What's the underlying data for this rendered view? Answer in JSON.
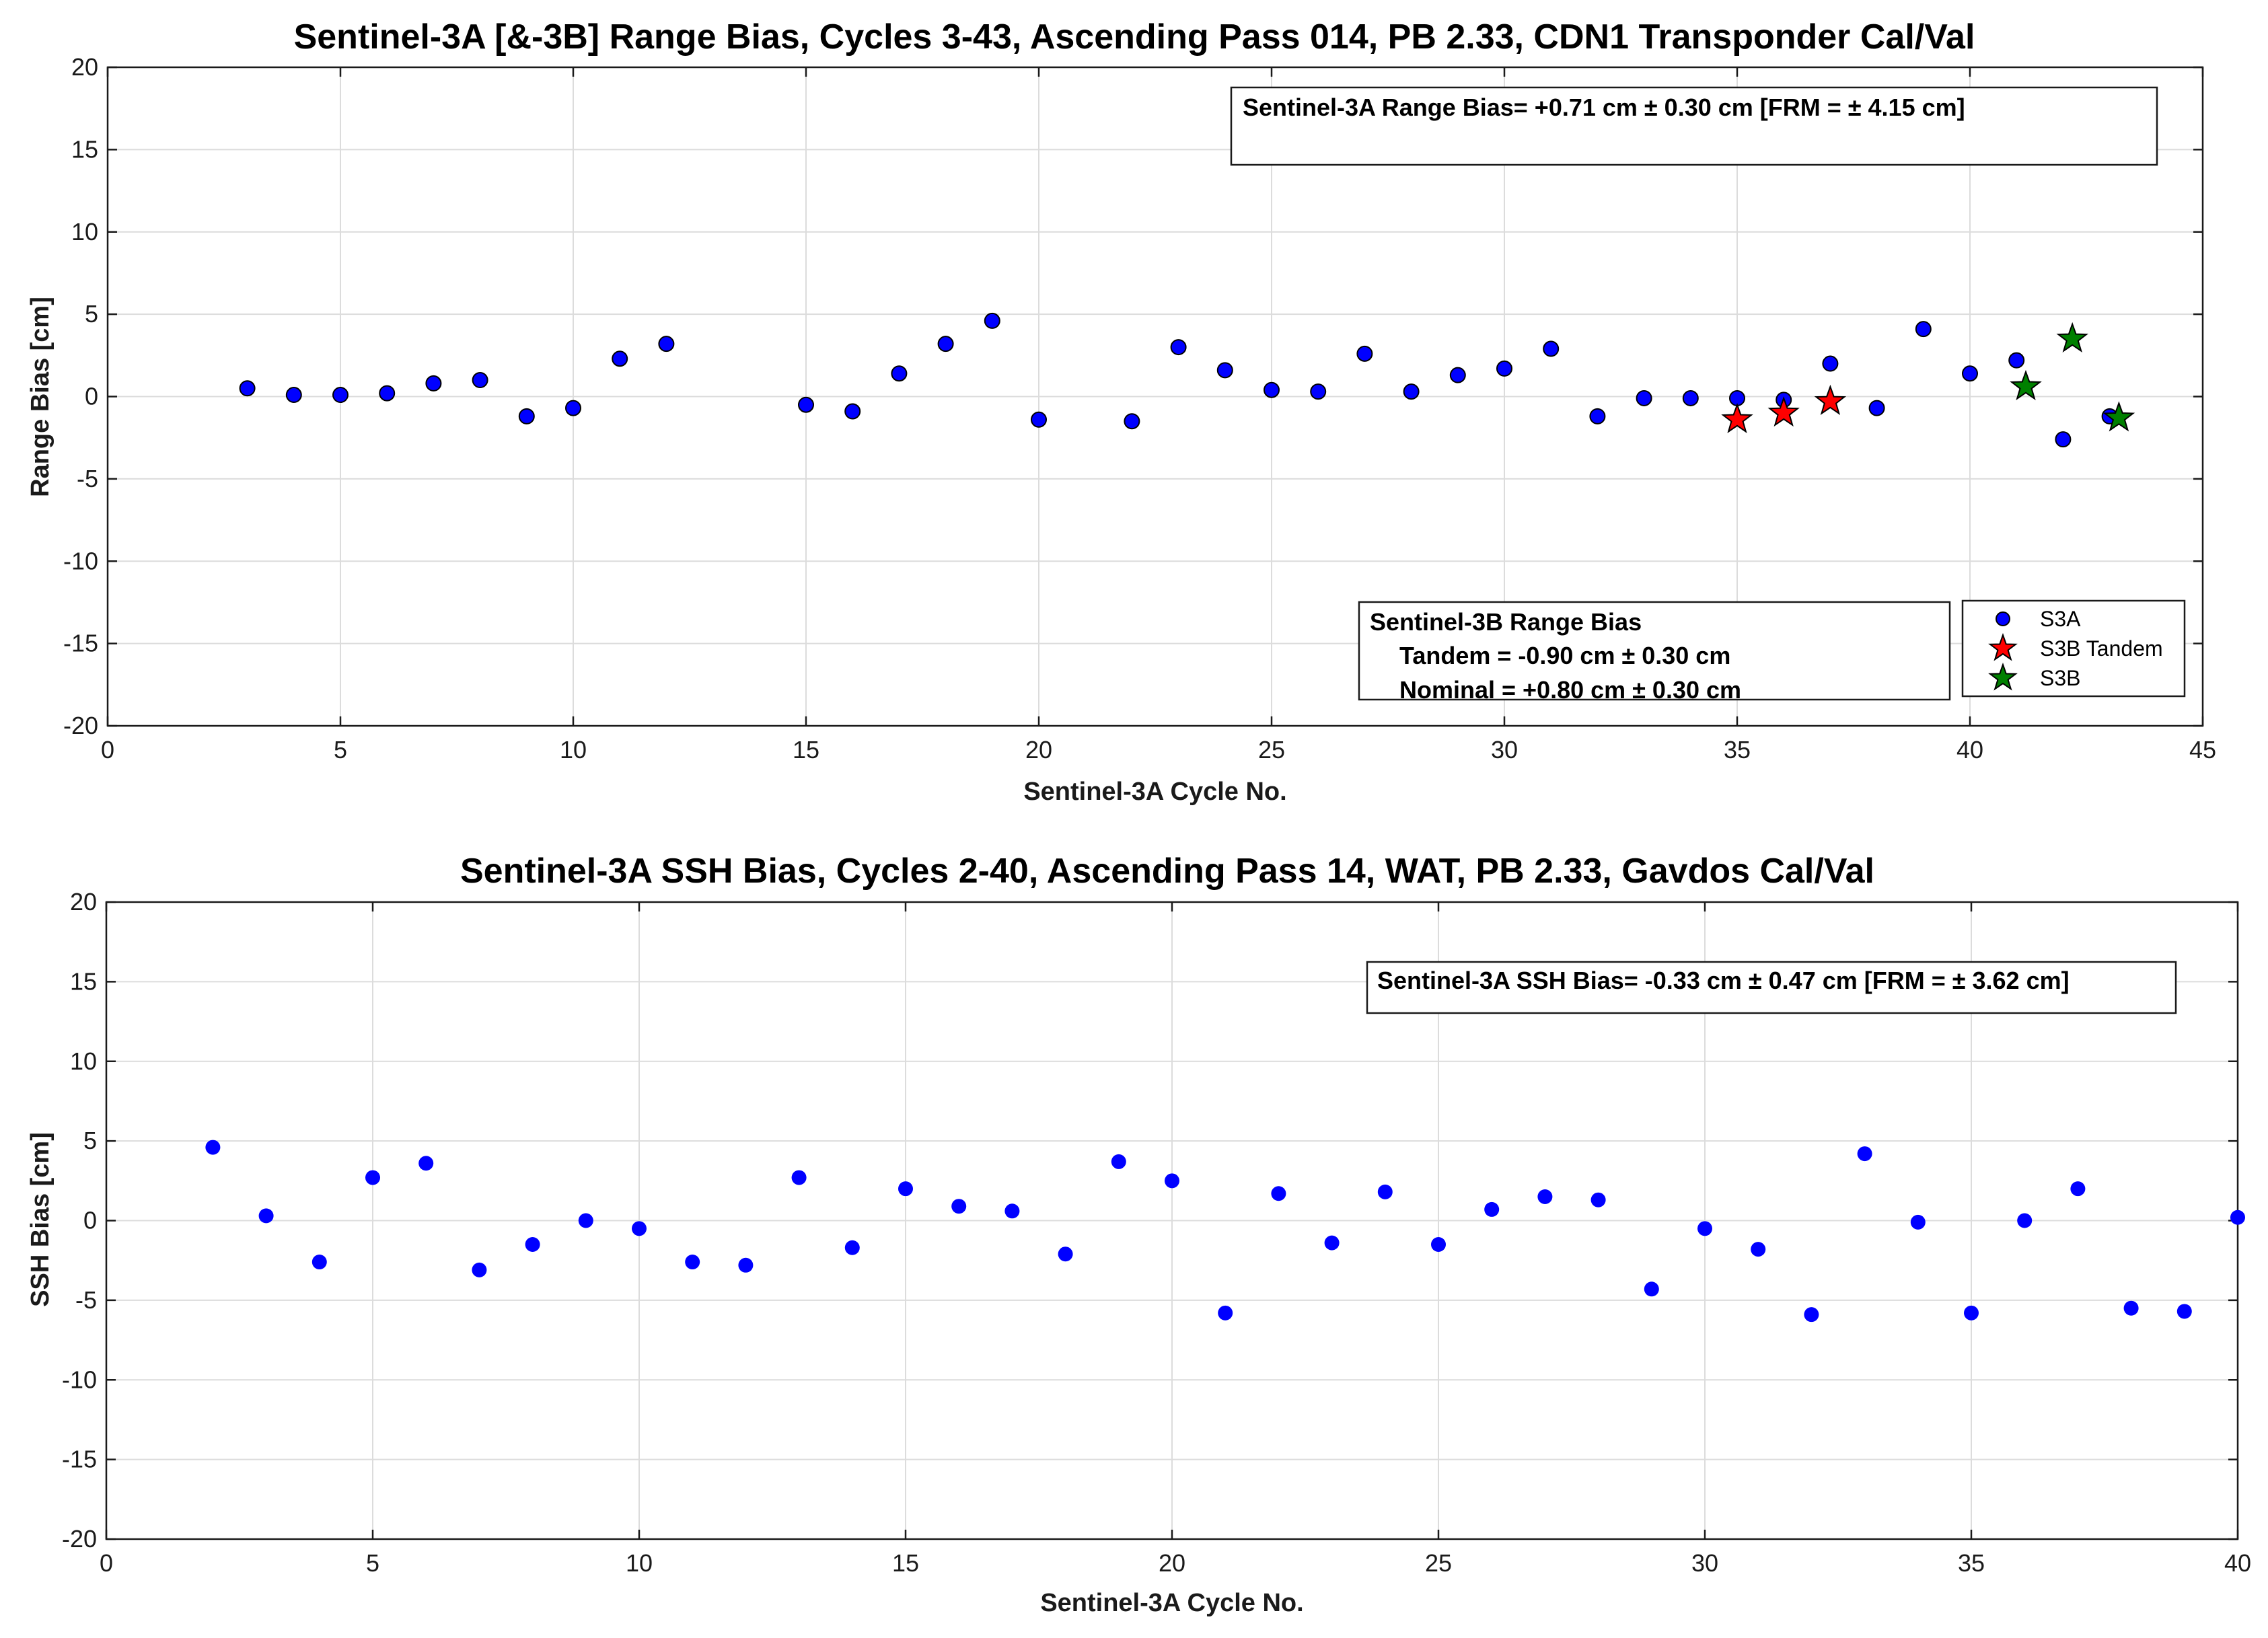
{
  "chart_data": [
    {
      "type": "scatter",
      "title": "Sentinel-3A [&-3B] Range Bias, Cycles 3-43, Ascending Pass 014, PB 2.33, CDN1 Transponder Cal/Val",
      "xlabel": "Sentinel-3A Cycle No.",
      "ylabel": "Range Bias [cm]",
      "xlim": [
        0,
        45
      ],
      "ylim": [
        -20,
        20
      ],
      "xticks": [
        0,
        5,
        10,
        15,
        20,
        25,
        30,
        35,
        40,
        45
      ],
      "yticks": [
        20,
        15,
        10,
        5,
        0,
        -5,
        -10,
        -15,
        -20
      ],
      "grid": true,
      "legend_position": "bottom-right",
      "series": [
        {
          "name": "S3A",
          "marker": "circle",
          "color": "#0000ff",
          "points": [
            [
              3,
              0.5
            ],
            [
              4,
              0.1
            ],
            [
              5,
              0.1
            ],
            [
              6,
              0.2
            ],
            [
              7,
              0.8
            ],
            [
              8,
              1.0
            ],
            [
              9,
              -1.2
            ],
            [
              10,
              -0.7
            ],
            [
              11,
              2.3
            ],
            [
              12,
              3.2
            ],
            [
              15,
              -0.5
            ],
            [
              16,
              -0.9
            ],
            [
              17,
              1.4
            ],
            [
              18,
              3.2
            ],
            [
              19,
              4.6
            ],
            [
              20,
              -1.4
            ],
            [
              22,
              -1.5
            ],
            [
              23,
              3.0
            ],
            [
              24,
              1.6
            ],
            [
              25,
              0.4
            ],
            [
              26,
              0.3
            ],
            [
              27,
              2.6
            ],
            [
              28,
              0.3
            ],
            [
              29,
              1.3
            ],
            [
              30,
              1.7
            ],
            [
              31,
              2.9
            ],
            [
              32,
              -1.2
            ],
            [
              33,
              -0.1
            ],
            [
              34,
              -0.1
            ],
            [
              35,
              -0.1
            ],
            [
              36,
              -0.2
            ],
            [
              37,
              2.0
            ],
            [
              38,
              -0.7
            ],
            [
              39,
              4.1
            ],
            [
              40,
              1.4
            ],
            [
              41,
              2.2
            ],
            [
              42,
              -2.6
            ],
            [
              43,
              -1.2
            ]
          ]
        },
        {
          "name": "S3B Tandem",
          "marker": "star",
          "color": "#ff0000",
          "points": [
            [
              35,
              -1.4
            ],
            [
              36,
              -1.0
            ],
            [
              37,
              -0.3
            ]
          ]
        },
        {
          "name": "S3B",
          "marker": "star",
          "color": "#008000",
          "points": [
            [
              41.2,
              0.6
            ],
            [
              42.2,
              3.5
            ],
            [
              43.2,
              -1.3
            ]
          ]
        }
      ],
      "annotations": [
        "Sentinel-3A Range Bias= +0.71 cm ± 0.30 cm [FRM = ± 4.15 cm]"
      ],
      "info_box": {
        "title": "Sentinel-3B Range Bias",
        "lines": [
          "Tandem = -0.90 cm ± 0.30 cm",
          "Nominal = +0.80 cm ± 0.30 cm"
        ]
      }
    },
    {
      "type": "scatter",
      "title": "Sentinel-3A SSH Bias, Cycles 2-40, Ascending Pass 14, WAT, PB 2.33, Gavdos Cal/Val",
      "xlabel": "Sentinel-3A Cycle No.",
      "ylabel": "SSH Bias [cm]",
      "xlim": [
        0,
        40
      ],
      "ylim": [
        -20,
        20
      ],
      "xticks": [
        0,
        5,
        10,
        15,
        20,
        25,
        30,
        35,
        40
      ],
      "yticks": [
        20,
        15,
        10,
        5,
        0,
        -5,
        -10,
        -15,
        -20
      ],
      "grid": true,
      "series": [
        {
          "name": "SSH Bias",
          "marker": "dot",
          "color": "#0000ff",
          "points": [
            [
              2,
              4.6
            ],
            [
              3,
              0.3
            ],
            [
              4,
              -2.6
            ],
            [
              5,
              2.7
            ],
            [
              6,
              3.6
            ],
            [
              7,
              -3.1
            ],
            [
              8,
              -1.5
            ],
            [
              9,
              0.0
            ],
            [
              10,
              -0.5
            ],
            [
              11,
              -2.6
            ],
            [
              12,
              -2.8
            ],
            [
              13,
              2.7
            ],
            [
              14,
              -1.7
            ],
            [
              15,
              2.0
            ],
            [
              16,
              0.9
            ],
            [
              17,
              0.6
            ],
            [
              18,
              -2.1
            ],
            [
              19,
              3.7
            ],
            [
              20,
              2.5
            ],
            [
              21,
              -5.8
            ],
            [
              22,
              1.7
            ],
            [
              23,
              -1.4
            ],
            [
              24,
              1.8
            ],
            [
              25,
              -1.5
            ],
            [
              26,
              0.7
            ],
            [
              27,
              1.5
            ],
            [
              28,
              1.3
            ],
            [
              29,
              -4.3
            ],
            [
              30,
              -0.5
            ],
            [
              31,
              -1.8
            ],
            [
              32,
              -5.9
            ],
            [
              33,
              4.2
            ],
            [
              34,
              -0.1
            ],
            [
              35,
              -5.8
            ],
            [
              36,
              0.0
            ],
            [
              37,
              2.0
            ],
            [
              38,
              -5.5
            ],
            [
              39,
              -5.7
            ],
            [
              40,
              0.2
            ]
          ]
        }
      ],
      "annotations": [
        "Sentinel-3A SSH Bias= -0.33 cm ± 0.47 cm [FRM = ± 3.62 cm]"
      ]
    }
  ]
}
